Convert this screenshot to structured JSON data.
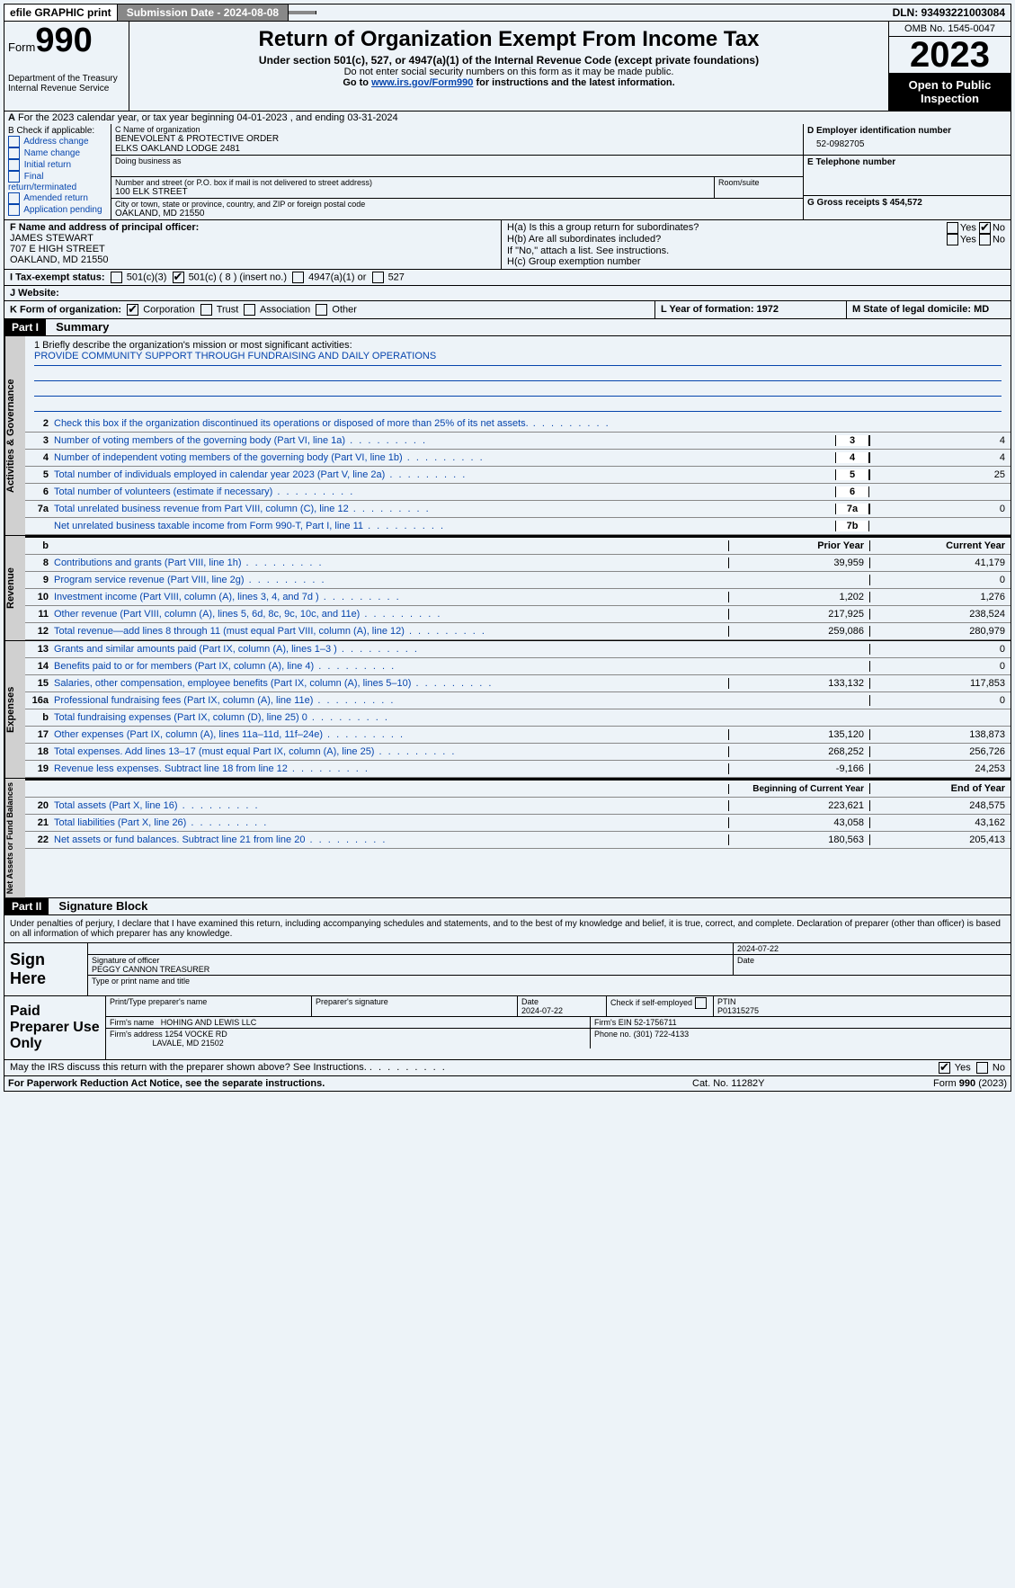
{
  "topbar": {
    "efile": "efile GRAPHIC print",
    "submission_label": "Submission Date - 2024-08-08",
    "dln_label": "DLN: 93493221003084"
  },
  "header": {
    "form_word": "Form",
    "form_num": "990",
    "dept": "Department of the Treasury",
    "irs": "Internal Revenue Service",
    "title": "Return of Organization Exempt From Income Tax",
    "sub": "Under section 501(c), 527, or 4947(a)(1) of the Internal Revenue Code (except private foundations)",
    "note1": "Do not enter social security numbers on this form as it may be made public.",
    "note2_pre": "Go to ",
    "note2_link": "www.irs.gov/Form990",
    "note2_post": " for instructions and the latest information.",
    "omb": "OMB No. 1545-0047",
    "year": "2023",
    "open": "Open to Public Inspection"
  },
  "lineA": "For the 2023 calendar year, or tax year beginning 04-01-2023   , and ending 03-31-2024",
  "boxB": {
    "title": "B Check if applicable:",
    "items": [
      "Address change",
      "Name change",
      "Initial return",
      "Final return/terminated",
      "Amended return",
      "Application pending"
    ]
  },
  "boxC": {
    "name_lbl": "C Name of organization",
    "name1": "BENEVOLENT & PROTECTIVE ORDER",
    "name2": "ELKS OAKLAND LODGE 2481",
    "dba_lbl": "Doing business as",
    "street_lbl": "Number and street (or P.O. box if mail is not delivered to street address)",
    "street": "100 ELK STREET",
    "room_lbl": "Room/suite",
    "city_lbl": "City or town, state or province, country, and ZIP or foreign postal code",
    "city": "OAKLAND, MD  21550"
  },
  "boxD": {
    "lbl": "D Employer identification number",
    "val": "52-0982705"
  },
  "boxE": {
    "lbl": "E Telephone number"
  },
  "boxG": {
    "lbl": "G Gross receipts $ 454,572"
  },
  "boxF": {
    "lbl": "F  Name and address of principal officer:",
    "name": "JAMES STEWART",
    "street": "707 E HIGH STREET",
    "city": "OAKLAND, MD  21550"
  },
  "boxH": {
    "a": "H(a)  Is this a group return for subordinates?",
    "b": "H(b)  Are all subordinates included?",
    "b_note": "If \"No,\" attach a list. See instructions.",
    "c": "H(c)  Group exemption number"
  },
  "rowI": {
    "lbl": "I   Tax-exempt status:",
    "c3": "501(c)(3)",
    "c": "501(c) ( 8 ) (insert no.)",
    "a1": "4947(a)(1) or",
    "527": "527"
  },
  "rowJ": "J   Website:",
  "rowK": {
    "lbl": "K Form of organization:",
    "opts": [
      "Corporation",
      "Trust",
      "Association",
      "Other"
    ],
    "L": "L Year of formation: 1972",
    "M": "M State of legal domicile: MD"
  },
  "part1": {
    "tag": "Part I",
    "title": "Summary"
  },
  "mission": {
    "q": "1   Briefly describe the organization's mission or most significant activities:",
    "a": "PROVIDE COMMUNITY SUPPORT THROUGH FUNDRAISING AND DAILY OPERATIONS"
  },
  "gov_lines": [
    {
      "n": "2",
      "d": "Check this box   if the organization discontinued its operations or disposed of more than 25% of its net assets.",
      "box": "",
      "v": ""
    },
    {
      "n": "3",
      "d": "Number of voting members of the governing body (Part VI, line 1a)",
      "box": "3",
      "v": "4"
    },
    {
      "n": "4",
      "d": "Number of independent voting members of the governing body (Part VI, line 1b)",
      "box": "4",
      "v": "4"
    },
    {
      "n": "5",
      "d": "Total number of individuals employed in calendar year 2023 (Part V, line 2a)",
      "box": "5",
      "v": "25"
    },
    {
      "n": "6",
      "d": "Total number of volunteers (estimate if necessary)",
      "box": "6",
      "v": ""
    },
    {
      "n": "7a",
      "d": "Total unrelated business revenue from Part VIII, column (C), line 12",
      "box": "7a",
      "v": "0"
    },
    {
      "n": "",
      "d": "Net unrelated business taxable income from Form 990-T, Part I, line 11",
      "box": "7b",
      "v": ""
    }
  ],
  "rev_hdr": {
    "b": "b",
    "py": "Prior Year",
    "cy": "Current Year"
  },
  "rev_lines": [
    {
      "n": "8",
      "d": "Contributions and grants (Part VIII, line 1h)",
      "py": "39,959",
      "cy": "41,179"
    },
    {
      "n": "9",
      "d": "Program service revenue (Part VIII, line 2g)",
      "py": "",
      "cy": "0"
    },
    {
      "n": "10",
      "d": "Investment income (Part VIII, column (A), lines 3, 4, and 7d )",
      "py": "1,202",
      "cy": "1,276"
    },
    {
      "n": "11",
      "d": "Other revenue (Part VIII, column (A), lines 5, 6d, 8c, 9c, 10c, and 11e)",
      "py": "217,925",
      "cy": "238,524"
    },
    {
      "n": "12",
      "d": "Total revenue—add lines 8 through 11 (must equal Part VIII, column (A), line 12)",
      "py": "259,086",
      "cy": "280,979"
    }
  ],
  "exp_lines": [
    {
      "n": "13",
      "d": "Grants and similar amounts paid (Part IX, column (A), lines 1–3 )",
      "py": "",
      "cy": "0"
    },
    {
      "n": "14",
      "d": "Benefits paid to or for members (Part IX, column (A), line 4)",
      "py": "",
      "cy": "0"
    },
    {
      "n": "15",
      "d": "Salaries, other compensation, employee benefits (Part IX, column (A), lines 5–10)",
      "py": "133,132",
      "cy": "117,853"
    },
    {
      "n": "16a",
      "d": "Professional fundraising fees (Part IX, column (A), line 11e)",
      "py": "",
      "cy": "0"
    },
    {
      "n": "b",
      "d": "Total fundraising expenses (Part IX, column (D), line 25) 0",
      "py": "_shade_",
      "cy": "_shade_"
    },
    {
      "n": "17",
      "d": "Other expenses (Part IX, column (A), lines 11a–11d, 11f–24e)",
      "py": "135,120",
      "cy": "138,873"
    },
    {
      "n": "18",
      "d": "Total expenses. Add lines 13–17 (must equal Part IX, column (A), line 25)",
      "py": "268,252",
      "cy": "256,726"
    },
    {
      "n": "19",
      "d": "Revenue less expenses. Subtract line 18 from line 12",
      "py": "-9,166",
      "cy": "24,253"
    }
  ],
  "net_hdr": {
    "py": "Beginning of Current Year",
    "cy": "End of Year"
  },
  "net_lines": [
    {
      "n": "20",
      "d": "Total assets (Part X, line 16)",
      "py": "223,621",
      "cy": "248,575"
    },
    {
      "n": "21",
      "d": "Total liabilities (Part X, line 26)",
      "py": "43,058",
      "cy": "43,162"
    },
    {
      "n": "22",
      "d": "Net assets or fund balances. Subtract line 21 from line 20",
      "py": "180,563",
      "cy": "205,413"
    }
  ],
  "part2": {
    "tag": "Part II",
    "title": "Signature Block"
  },
  "sig_decl": "Under penalties of perjury, I declare that I have examined this return, including accompanying schedules and statements, and to the best of my knowledge and belief, it is true, correct, and complete. Declaration of preparer (other than officer) is based on all information of which preparer has any knowledge.",
  "sign_here": "Sign Here",
  "sign": {
    "date": "2024-07-22",
    "sig_lbl": "Signature of officer",
    "name": "PEGGY CANNON  TREASURER",
    "type_lbl": "Type or print name and title",
    "date_lbl": "Date"
  },
  "paid": "Paid Preparer Use Only",
  "prep": {
    "h1": "Print/Type preparer's name",
    "h2": "Preparer's signature",
    "h3": "Date",
    "h3v": "2024-07-22",
    "h4": "Check   if self-employed",
    "h5": "PTIN",
    "h5v": "P01315275",
    "firm_lbl": "Firm's name",
    "firm": "HOHING AND LEWIS LLC",
    "ein_lbl": "Firm's EIN",
    "ein": "52-1756711",
    "addr_lbl": "Firm's address",
    "addr1": "1254 VOCKE RD",
    "addr2": "LAVALE, MD  21502",
    "phone_lbl": "Phone no.",
    "phone": "(301) 722-4133"
  },
  "may_irs": "May the IRS discuss this return with the preparer shown above? See Instructions.",
  "footer": {
    "pra": "For Paperwork Reduction Act Notice, see the separate instructions.",
    "cat": "Cat. No. 11282Y",
    "form": "Form 990 (2023)"
  },
  "vtabs": {
    "gov": "Activities & Governance",
    "rev": "Revenue",
    "exp": "Expenses",
    "net": "Net Assets or Fund Balances"
  }
}
